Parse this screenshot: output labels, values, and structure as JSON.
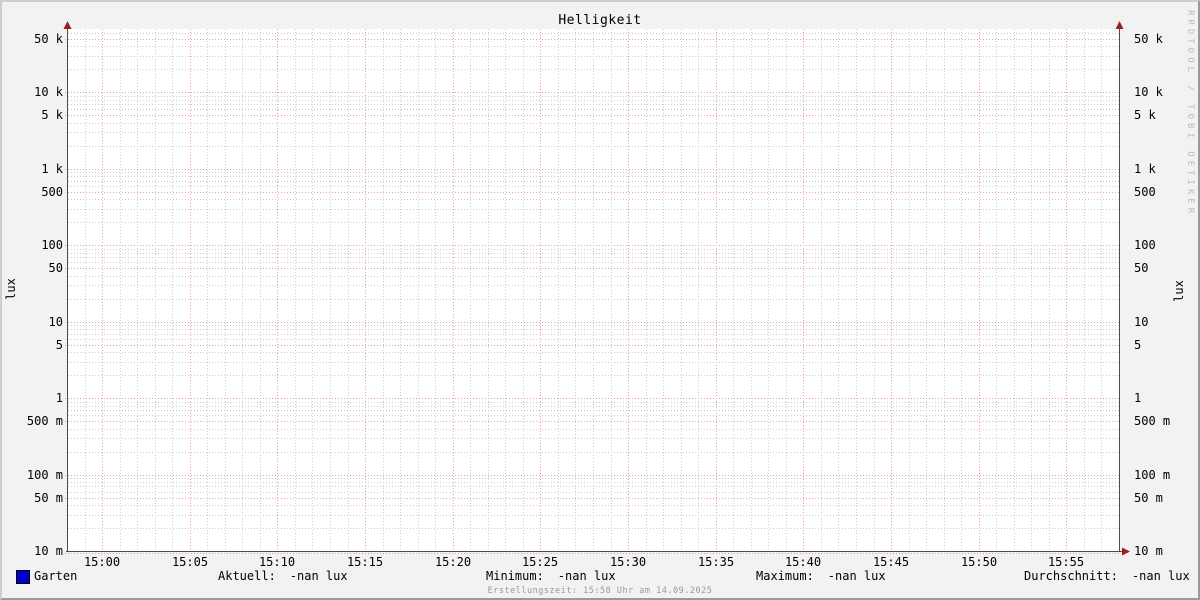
{
  "chart_data": {
    "type": "line",
    "title": "Helligkeit",
    "watermark": "RRDTOOL / TOBI OETIKER",
    "footer": "Erstellungszeit: 15:58 Uhr am 14.09.2025",
    "y_axis": {
      "scale": "log",
      "unit_left": "lux",
      "unit_right": "lux",
      "range": [
        0.01,
        67500
      ],
      "major_ticks": [
        {
          "value": 0.01,
          "label": "10 m"
        },
        {
          "value": 0.05,
          "label": "50 m"
        },
        {
          "value": 0.1,
          "label": "100 m"
        },
        {
          "value": 0.5,
          "label": "500 m"
        },
        {
          "value": 1,
          "label": "1"
        },
        {
          "value": 5,
          "label": "5"
        },
        {
          "value": 10,
          "label": "10"
        },
        {
          "value": 50,
          "label": "50"
        },
        {
          "value": 100,
          "label": "100"
        },
        {
          "value": 500,
          "label": "500"
        },
        {
          "value": 1000,
          "label": "1 k"
        },
        {
          "value": 5000,
          "label": "5 k"
        },
        {
          "value": 10000,
          "label": "10 k"
        },
        {
          "value": 50000,
          "label": "50 k"
        }
      ],
      "minor_tick_multipliers": [
        2,
        3,
        4,
        6,
        7,
        8,
        9
      ]
    },
    "x_axis": {
      "start": "14:58",
      "end": "15:58",
      "major_ticks": [
        {
          "minute": 2,
          "label": "15:00"
        },
        {
          "minute": 7,
          "label": "15:05"
        },
        {
          "minute": 12,
          "label": "15:10"
        },
        {
          "minute": 17,
          "label": "15:15"
        },
        {
          "minute": 22,
          "label": "15:20"
        },
        {
          "minute": 27,
          "label": "15:25"
        },
        {
          "minute": 32,
          "label": "15:30"
        },
        {
          "minute": 37,
          "label": "15:35"
        },
        {
          "minute": 42,
          "label": "15:40"
        },
        {
          "minute": 47,
          "label": "15:45"
        },
        {
          "minute": 52,
          "label": "15:50"
        },
        {
          "minute": 57,
          "label": "15:55"
        }
      ],
      "minor_tick_every_minutes": 1
    },
    "series": [
      {
        "name": "Garten",
        "color": "#0000cf",
        "values": []
      }
    ],
    "legend": {
      "series_label": "Garten",
      "stats": [
        {
          "label": "Aktuell:",
          "value": "-nan lux"
        },
        {
          "label": "Minimum:",
          "value": "-nan lux"
        },
        {
          "label": "Maximum:",
          "value": "-nan lux"
        },
        {
          "label": "Durchschnitt:",
          "value": "-nan lux"
        }
      ]
    },
    "colors": {
      "background": "#f2f2f2",
      "canvas": "#ffffff",
      "grid_major": "#f19c9c",
      "grid_minor": "#cccccc",
      "axis": "#4d4d4d",
      "arrow": "#9e1f1f",
      "text": "#000000",
      "watermark": "#bcbcbc",
      "footer_text": "#999999"
    }
  }
}
